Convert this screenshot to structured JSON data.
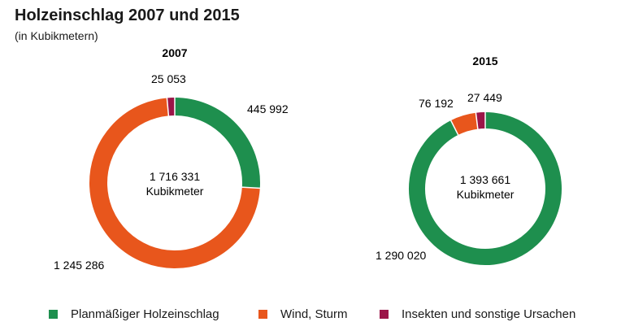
{
  "title": "Holzeinschlag 2007 und 2015",
  "subtitle": "(in Kubikmetern)",
  "colors": {
    "planned": "#1e8f4e",
    "wind": "#e8561c",
    "insects": "#9b1548"
  },
  "legend": [
    {
      "label": "Planmäßiger Holzeinschlag",
      "color": "#1e8f4e"
    },
    {
      "label": "Wind, Sturm",
      "color": "#e8561c"
    },
    {
      "label": "Insekten und sonstige Ursachen",
      "color": "#9b1548"
    }
  ],
  "chart_data": [
    {
      "type": "pie",
      "variant": "donut",
      "title": "2007",
      "center_value": "1 716 331",
      "center_unit": "Kubikmeter",
      "categories": [
        "Planmäßiger Holzeinschlag",
        "Wind, Sturm",
        "Insekten und sonstige Ursachen"
      ],
      "values": [
        445992,
        1245286,
        25053
      ],
      "value_labels": [
        "445 992",
        "1 245 286",
        "25 053"
      ]
    },
    {
      "type": "pie",
      "variant": "donut",
      "title": "2015",
      "center_value": "1 393 661",
      "center_unit": "Kubikmeter",
      "categories": [
        "Planmäßiger Holzeinschlag",
        "Wind, Sturm",
        "Insekten und sonstige Ursachen"
      ],
      "values": [
        1290020,
        76192,
        27449
      ],
      "value_labels": [
        "1 290 020",
        "76 192",
        "27 449"
      ]
    }
  ]
}
